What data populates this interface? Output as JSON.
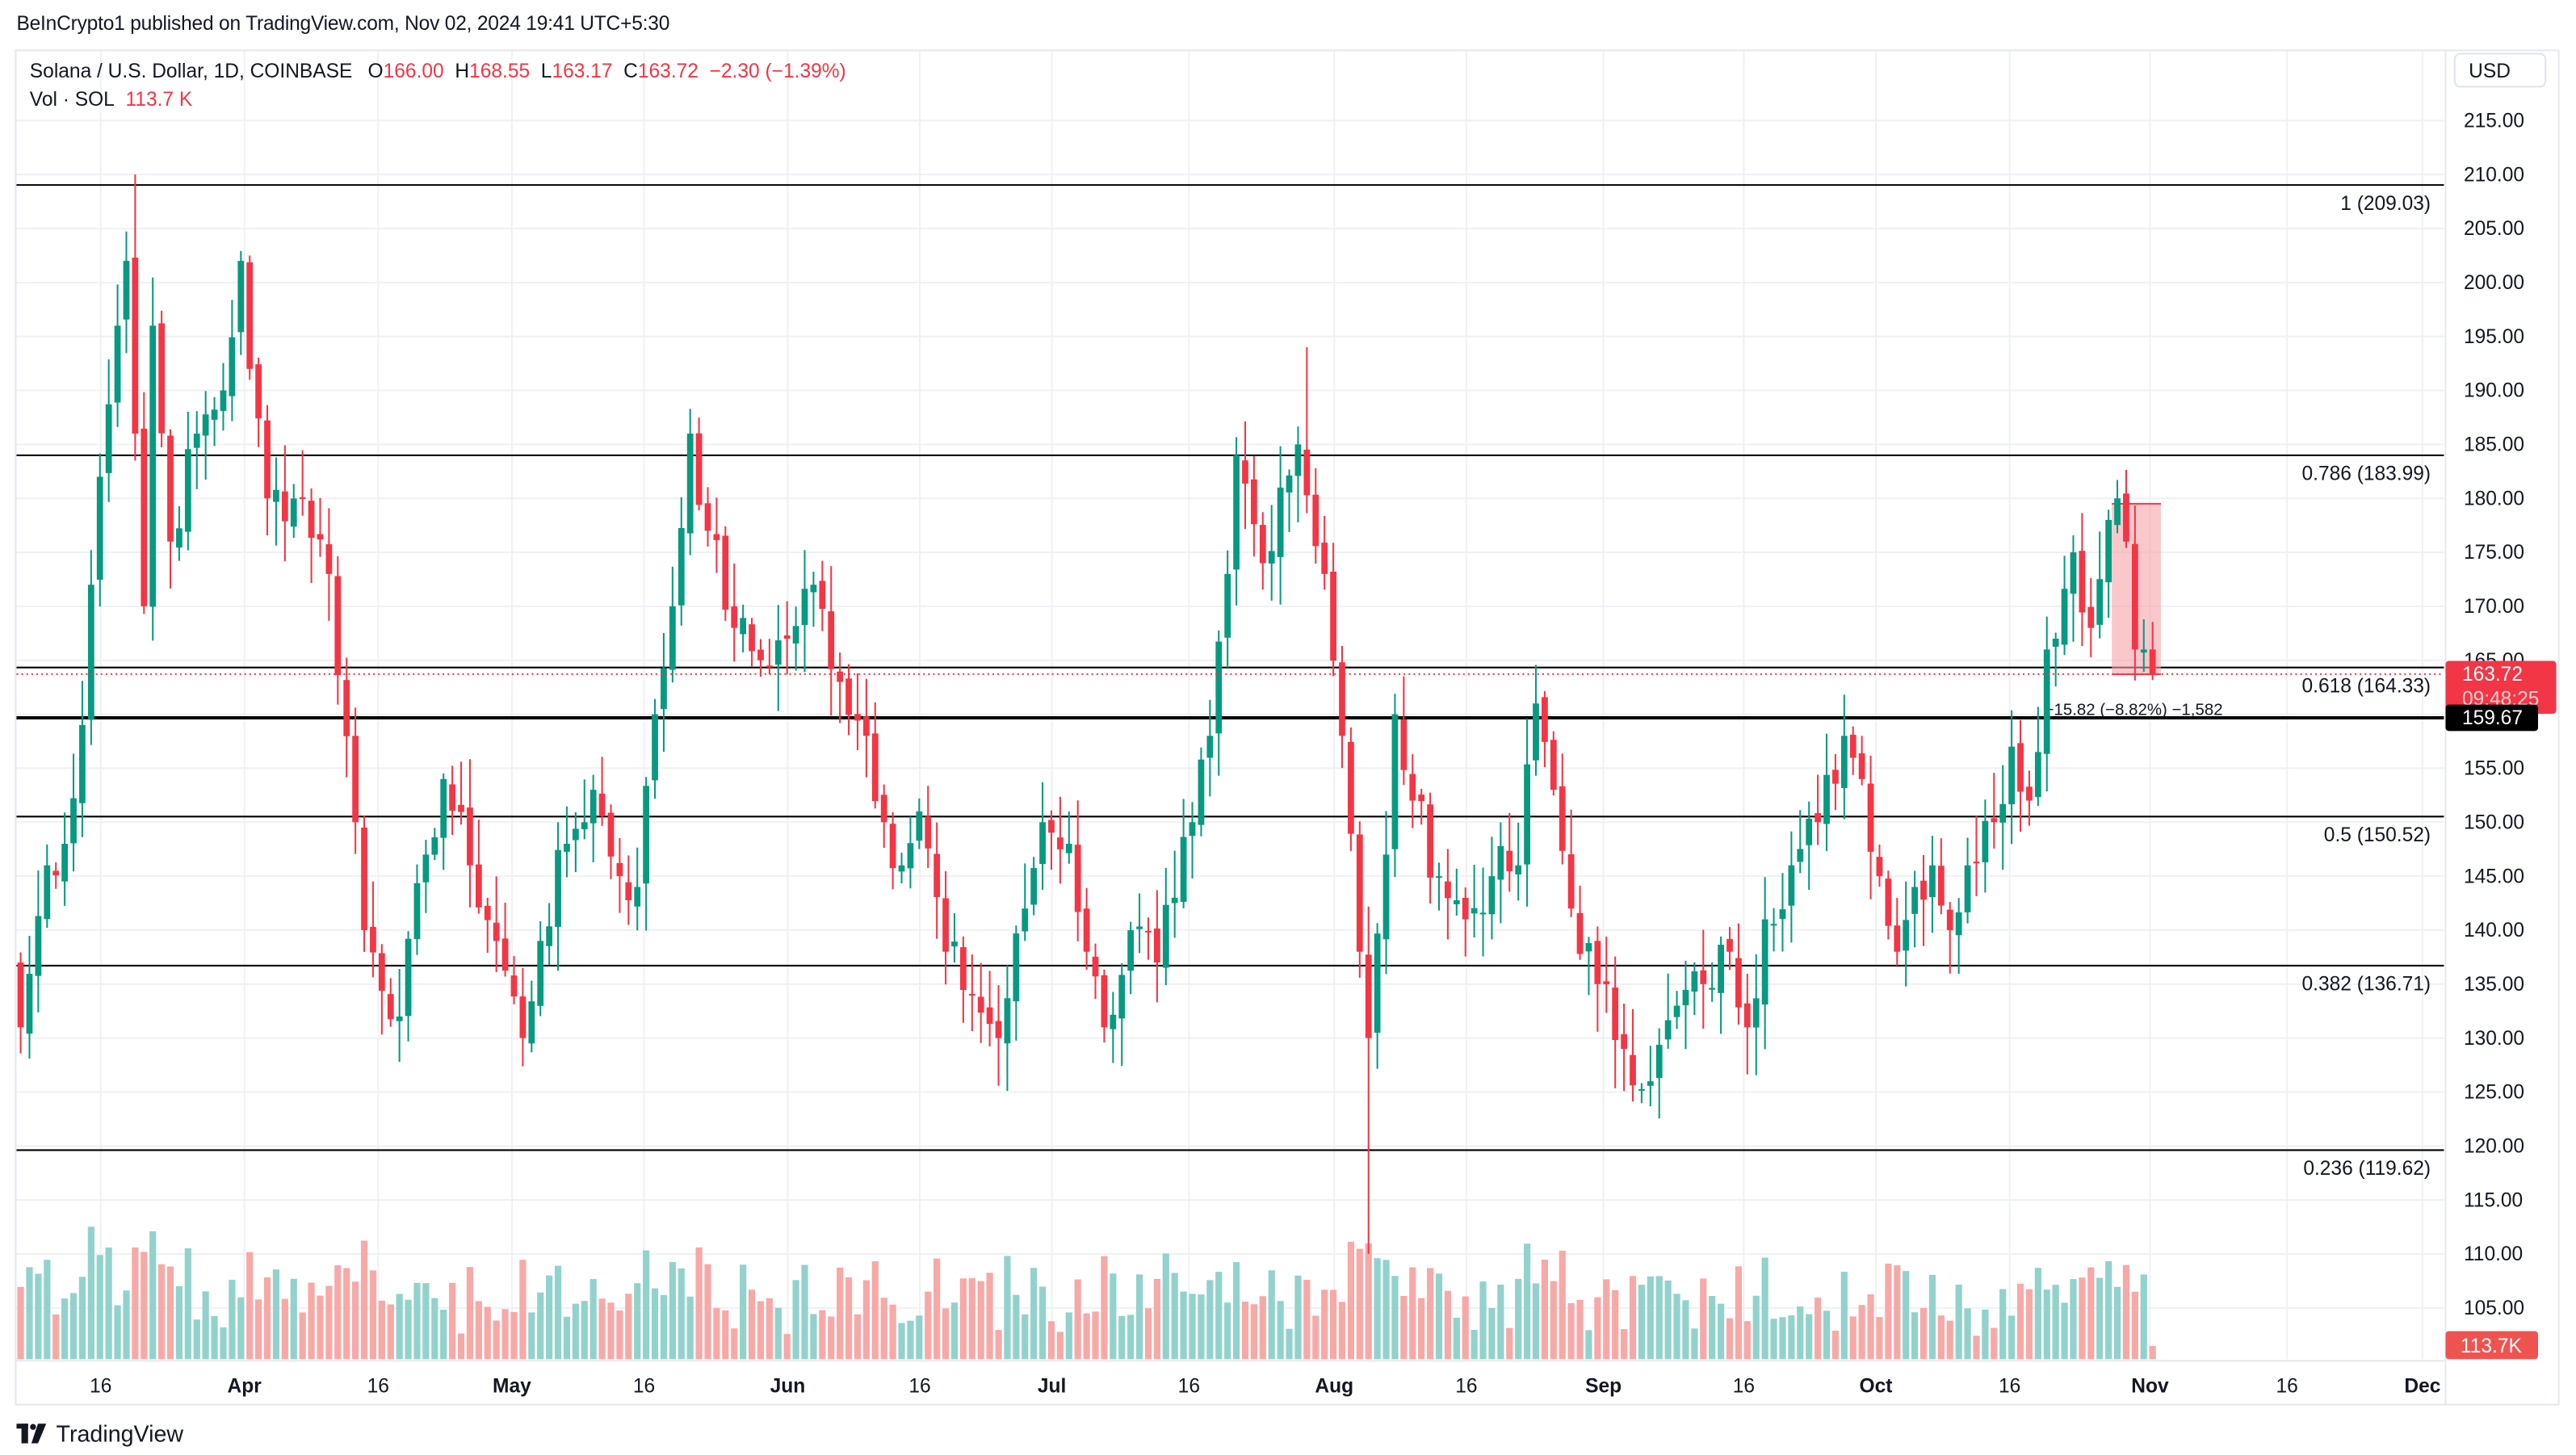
{
  "publish_line": "BeInCrypto1 published on TradingView.com, Nov 02, 2024 19:41 UTC+5:30",
  "legend": {
    "symbol": "Solana / U.S. Dollar, 1D, COINBASE",
    "open_label": "O",
    "open": "166.00",
    "high_label": "H",
    "high": "168.55",
    "low_label": "L",
    "low": "163.17",
    "close_label": "C",
    "close": "163.72",
    "change": "−2.30 (−1.39%)",
    "vol_label": "Vol · SOL",
    "vol_value": "113.7 K"
  },
  "currency_button": "USD",
  "footer": {
    "brand": "TradingView"
  },
  "colors": {
    "up": "#089981",
    "down": "#f23645",
    "vol_up": "#92d2cc",
    "vol_down": "#f7a9a7",
    "grid": "#f0f1f4",
    "fib_line": "#000000",
    "range_fill": "#f7a1a8",
    "price_tag": "#f23645"
  },
  "price_axis": {
    "ticks": [
      "215.00",
      "210.00",
      "205.00",
      "200.00",
      "195.00",
      "190.00",
      "185.00",
      "180.00",
      "175.00",
      "170.00",
      "165.00",
      "160.00",
      "155.00",
      "150.00",
      "145.00",
      "140.00",
      "135.00",
      "130.00",
      "125.00",
      "120.00",
      "115.00",
      "110.00",
      "105.00"
    ],
    "last_price": "163.72",
    "countdown": "09:48:25",
    "marker_price": "159.67",
    "volume_tag": "113.7K"
  },
  "time_axis": {
    "labels": [
      {
        "text": "16",
        "x": 61,
        "bold": false
      },
      {
        "text": "Apr",
        "x": 148,
        "bold": true
      },
      {
        "text": "16",
        "x": 229,
        "bold": false
      },
      {
        "text": "May",
        "x": 310,
        "bold": true
      },
      {
        "text": "16",
        "x": 390,
        "bold": false
      },
      {
        "text": "Jun",
        "x": 477,
        "bold": true
      },
      {
        "text": "16",
        "x": 557,
        "bold": false
      },
      {
        "text": "Jul",
        "x": 637,
        "bold": true
      },
      {
        "text": "16",
        "x": 720,
        "bold": false
      },
      {
        "text": "Aug",
        "x": 808,
        "bold": true
      },
      {
        "text": "16",
        "x": 888,
        "bold": false
      },
      {
        "text": "Sep",
        "x": 971,
        "bold": true
      },
      {
        "text": "16",
        "x": 1056,
        "bold": false
      },
      {
        "text": "Oct",
        "x": 1136,
        "bold": true
      },
      {
        "text": "16",
        "x": 1217,
        "bold": false
      },
      {
        "text": "Nov",
        "x": 1302,
        "bold": true
      },
      {
        "text": "16",
        "x": 1385,
        "bold": false
      },
      {
        "text": "Dec",
        "x": 1467,
        "bold": true
      }
    ]
  },
  "fib_levels": [
    {
      "ratio": "1",
      "price": 209.03,
      "label": "1 (209.03)"
    },
    {
      "ratio": "0.786",
      "price": 183.99,
      "label": "0.786 (183.99)"
    },
    {
      "ratio": "0.618",
      "price": 164.33,
      "label": "0.618 (164.33)"
    },
    {
      "ratio": "0.5",
      "price": 150.52,
      "label": "0.5 (150.52)"
    },
    {
      "ratio": "0.382",
      "price": 136.71,
      "label": "0.382 (136.71)"
    },
    {
      "ratio": "0.236",
      "price": 119.62,
      "label": "0.236 (119.62)"
    }
  ],
  "horizontal_line": {
    "price": 159.67,
    "label": "159.67"
  },
  "measure_tool": {
    "label": "−15.82 (−8.82%) −1,582",
    "from_price": 179.5,
    "to_price": 163.7
  },
  "chart_data": {
    "type": "candlestick",
    "title": "Solana / U.S. Dollar, 1D, COINBASE",
    "xlabel": "",
    "ylabel": "USD",
    "ylim": [
      103,
      217
    ],
    "x_range": [
      "2024-03-05",
      "2024-11-02"
    ],
    "grid": true,
    "last": {
      "open": 166.0,
      "high": 168.55,
      "low": 163.17,
      "close": 163.72,
      "change": -2.3,
      "change_pct": -1.39,
      "volume": "113.7K"
    },
    "key_closes": [
      {
        "date": "2024-03-05",
        "close": 131
      },
      {
        "date": "2024-03-08",
        "close": 146
      },
      {
        "date": "2024-03-10",
        "close": 148
      },
      {
        "date": "2024-03-12",
        "close": 159
      },
      {
        "date": "2024-03-13",
        "close": 172
      },
      {
        "date": "2024-03-14",
        "close": 182
      },
      {
        "date": "2024-03-16",
        "close": 196
      },
      {
        "date": "2024-03-17",
        "close": 202
      },
      {
        "date": "2024-03-18",
        "close": 186
      },
      {
        "date": "2024-03-19",
        "close": 170
      },
      {
        "date": "2024-03-20",
        "close": 196
      },
      {
        "date": "2024-03-22",
        "close": 176
      },
      {
        "date": "2024-03-25",
        "close": 186
      },
      {
        "date": "2024-03-28",
        "close": 190
      },
      {
        "date": "2024-03-30",
        "close": 202
      },
      {
        "date": "2024-03-31",
        "close": 192
      },
      {
        "date": "2024-04-02",
        "close": 180
      },
      {
        "date": "2024-04-06",
        "close": 180
      },
      {
        "date": "2024-04-09",
        "close": 173
      },
      {
        "date": "2024-04-12",
        "close": 150
      },
      {
        "date": "2024-04-13",
        "close": 140
      },
      {
        "date": "2024-04-17",
        "close": 132
      },
      {
        "date": "2024-04-20",
        "close": 147
      },
      {
        "date": "2024-04-22",
        "close": 154
      },
      {
        "date": "2024-04-25",
        "close": 146
      },
      {
        "date": "2024-04-28",
        "close": 139
      },
      {
        "date": "2024-05-01",
        "close": 130
      },
      {
        "date": "2024-05-03",
        "close": 139
      },
      {
        "date": "2024-05-06",
        "close": 148
      },
      {
        "date": "2024-05-09",
        "close": 153
      },
      {
        "date": "2024-05-12",
        "close": 145
      },
      {
        "date": "2024-05-14",
        "close": 144
      },
      {
        "date": "2024-05-16",
        "close": 160
      },
      {
        "date": "2024-05-18",
        "close": 170
      },
      {
        "date": "2024-05-20",
        "close": 186
      },
      {
        "date": "2024-05-22",
        "close": 177
      },
      {
        "date": "2024-05-25",
        "close": 168
      },
      {
        "date": "2024-05-28",
        "close": 165
      },
      {
        "date": "2024-05-31",
        "close": 167
      },
      {
        "date": "2024-06-03",
        "close": 172
      },
      {
        "date": "2024-06-06",
        "close": 163
      },
      {
        "date": "2024-06-09",
        "close": 158
      },
      {
        "date": "2024-06-11",
        "close": 150
      },
      {
        "date": "2024-06-13",
        "close": 146
      },
      {
        "date": "2024-06-15",
        "close": 151
      },
      {
        "date": "2024-06-18",
        "close": 138
      },
      {
        "date": "2024-06-21",
        "close": 134
      },
      {
        "date": "2024-06-24",
        "close": 130
      },
      {
        "date": "2024-06-27",
        "close": 142
      },
      {
        "date": "2024-06-29",
        "close": 150
      },
      {
        "date": "2024-07-02",
        "close": 148
      },
      {
        "date": "2024-07-04",
        "close": 138
      },
      {
        "date": "2024-07-06",
        "close": 131
      },
      {
        "date": "2024-07-09",
        "close": 140
      },
      {
        "date": "2024-07-12",
        "close": 137
      },
      {
        "date": "2024-07-14",
        "close": 143
      },
      {
        "date": "2024-07-16",
        "close": 150
      },
      {
        "date": "2024-07-18",
        "close": 158
      },
      {
        "date": "2024-07-20",
        "close": 173
      },
      {
        "date": "2024-07-21",
        "close": 184
      },
      {
        "date": "2024-07-24",
        "close": 174
      },
      {
        "date": "2024-07-26",
        "close": 181
      },
      {
        "date": "2024-07-28",
        "close": 185
      },
      {
        "date": "2024-07-31",
        "close": 173
      },
      {
        "date": "2024-08-02",
        "close": 158
      },
      {
        "date": "2024-08-04",
        "close": 138
      },
      {
        "date": "2024-08-05",
        "close": 130
      },
      {
        "date": "2024-08-07",
        "close": 147
      },
      {
        "date": "2024-08-08",
        "close": 160
      },
      {
        "date": "2024-08-10",
        "close": 152
      },
      {
        "date": "2024-08-13",
        "close": 145
      },
      {
        "date": "2024-08-16",
        "close": 141
      },
      {
        "date": "2024-08-19",
        "close": 145
      },
      {
        "date": "2024-08-22",
        "close": 146
      },
      {
        "date": "2024-08-24",
        "close": 161
      },
      {
        "date": "2024-08-26",
        "close": 153
      },
      {
        "date": "2024-08-28",
        "close": 142
      },
      {
        "date": "2024-08-31",
        "close": 135
      },
      {
        "date": "2024-09-03",
        "close": 129
      },
      {
        "date": "2024-09-06",
        "close": 126
      },
      {
        "date": "2024-09-09",
        "close": 133
      },
      {
        "date": "2024-09-12",
        "close": 135
      },
      {
        "date": "2024-09-15",
        "close": 138
      },
      {
        "date": "2024-09-17",
        "close": 131
      },
      {
        "date": "2024-09-19",
        "close": 141
      },
      {
        "date": "2024-09-22",
        "close": 146
      },
      {
        "date": "2024-09-25",
        "close": 150
      },
      {
        "date": "2024-09-28",
        "close": 158
      },
      {
        "date": "2024-09-30",
        "close": 154
      },
      {
        "date": "2024-10-02",
        "close": 145
      },
      {
        "date": "2024-10-04",
        "close": 138
      },
      {
        "date": "2024-10-06",
        "close": 144
      },
      {
        "date": "2024-10-08",
        "close": 146
      },
      {
        "date": "2024-10-10",
        "close": 140
      },
      {
        "date": "2024-10-12",
        "close": 146
      },
      {
        "date": "2024-10-15",
        "close": 150
      },
      {
        "date": "2024-10-17",
        "close": 157
      },
      {
        "date": "2024-10-19",
        "close": 152
      },
      {
        "date": "2024-10-21",
        "close": 166
      },
      {
        "date": "2024-10-22",
        "close": 167
      },
      {
        "date": "2024-10-24",
        "close": 175
      },
      {
        "date": "2024-10-26",
        "close": 168
      },
      {
        "date": "2024-10-28",
        "close": 178
      },
      {
        "date": "2024-10-29",
        "close": 180
      },
      {
        "date": "2024-10-30",
        "close": 176
      },
      {
        "date": "2024-10-31",
        "close": 166
      },
      {
        "date": "2024-11-01",
        "close": 166
      },
      {
        "date": "2024-11-02",
        "close": 163.72
      }
    ]
  }
}
